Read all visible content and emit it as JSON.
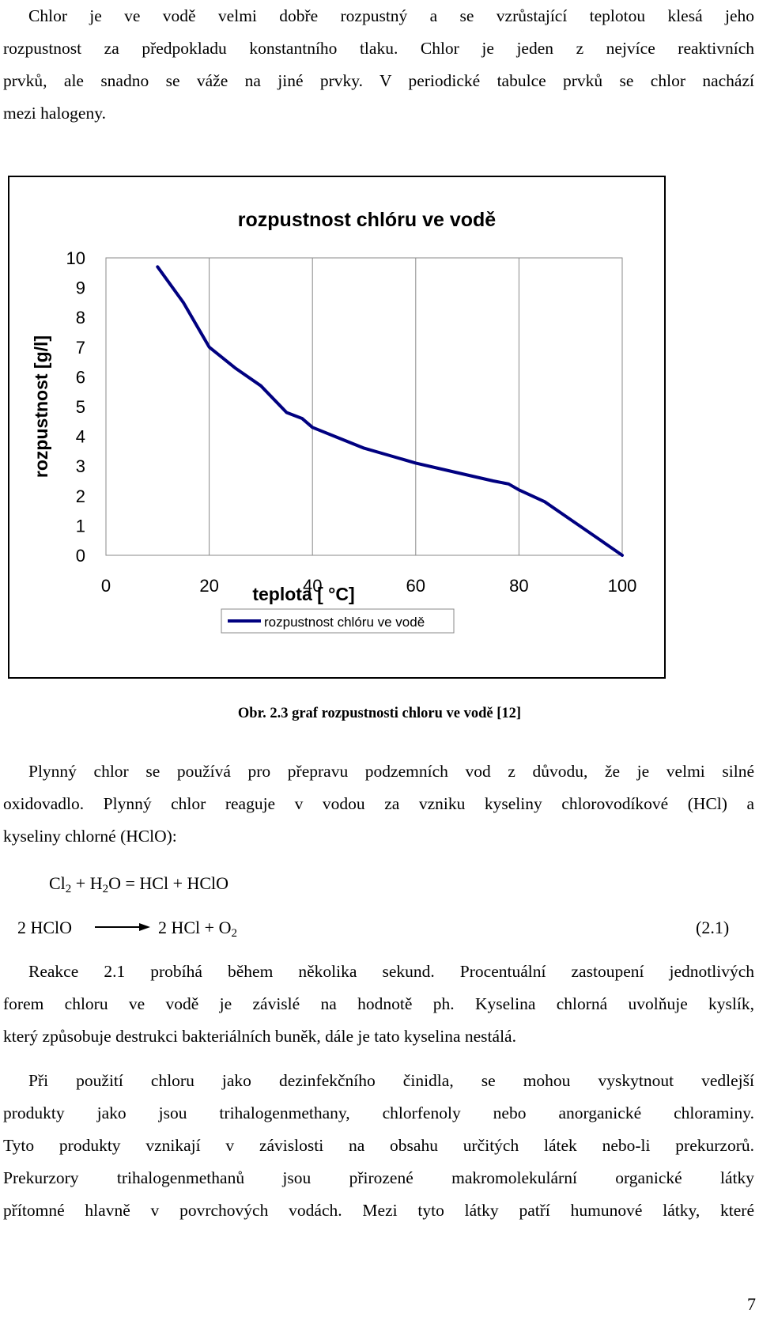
{
  "intro_lines": [
    "Chlor je ve vodě velmi dobře rozpustný a se vzrůstající teplotou klesá jeho",
    "rozpustnost za předpokladu konstantního tlaku. Chlor je jeden z nejvíce reaktivních",
    "prvků, ale snadno se váže na jiné prvky. V periodické tabulce prvků se chlor nachází",
    "mezi halogeny."
  ],
  "chart_data": {
    "type": "line",
    "title": "rozpustnost chlóru ve vodě",
    "xlabel": "teplota [ °C]",
    "ylabel": "rozpustnost [g/l]",
    "xlim": [
      0,
      100
    ],
    "ylim": [
      0,
      10
    ],
    "x_ticks": [
      "0",
      "20",
      "40",
      "60",
      "80",
      "100"
    ],
    "y_ticks": [
      "0",
      "1",
      "2",
      "3",
      "4",
      "5",
      "6",
      "7",
      "8",
      "9",
      "10"
    ],
    "grid": true,
    "legend": "bottom",
    "series": [
      {
        "name": "rozpustnost chlóru ve vodě",
        "color": "#000080",
        "x": [
          10,
          15,
          20,
          25,
          30,
          35,
          38,
          40,
          45,
          50,
          55,
          60,
          65,
          70,
          75,
          78,
          80,
          85,
          90,
          95,
          100
        ],
        "y": [
          9.7,
          8.5,
          7.0,
          6.3,
          5.7,
          4.8,
          4.6,
          4.3,
          3.95,
          3.6,
          3.35,
          3.1,
          2.9,
          2.7,
          2.5,
          2.4,
          2.2,
          1.8,
          1.2,
          0.6,
          0.0
        ]
      }
    ]
  },
  "caption": "Obr. 2.3 graf rozpustnosti chloru ve vodě [12]",
  "para2_lines": [
    "Plynný chlor se používá pro přepravu podzemních vod z důvodu, že je velmi silné",
    "oxidovadlo. Plynný chlor reaguje v vodou za vzniku kyseliny chlorovodíkové (HCl) a",
    "kyseliny chlorné (HClO):"
  ],
  "equation1": {
    "cl": "Cl",
    "cl_sub": "2",
    "plus_h": " + H",
    "h_sub": "2",
    "rest": "O = HCl + HClO"
  },
  "equation2": {
    "left": "2 HClO",
    "right": "2 HCl + O",
    "o_sub": "2",
    "label": "(2.1)"
  },
  "para3_lines": [
    "Reakce 2.1 probíhá během několika sekund. Procentuální zastoupení jednotlivých",
    "forem chloru ve vodě je závislé na hodnotě ph. Kyselina chlorná uvolňuje kyslík,",
    "který způsobuje destrukci bakteriálních buněk, dále je tato kyselina nestálá."
  ],
  "para4_lines": [
    "Při použití chloru jako dezinfekčního činidla, se mohou vyskytnout vedlejší",
    "produkty jako jsou trihalogenmethany, chlorfenoly nebo anorganické chloraminy.",
    "Tyto produkty vznikají v závislosti na obsahu určitých látek nebo-li prekurzorů.",
    "Prekurzory trihalogenmethanů jsou přirozené makromolekulární organické látky",
    "přítomné hlavně v povrchových vodách. Mezi tyto látky patří humunové látky, které"
  ],
  "page_number": "7"
}
